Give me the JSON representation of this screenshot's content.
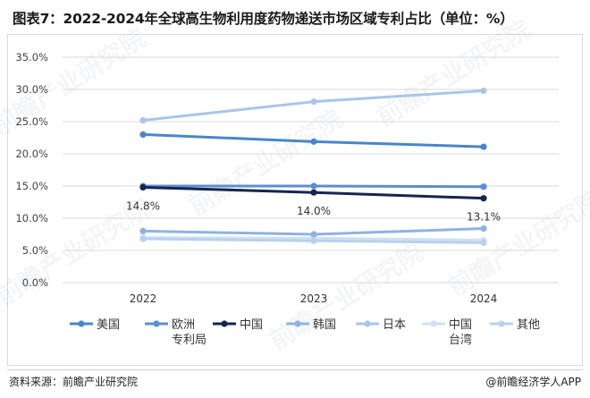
{
  "title": "图表7：2022-2024年全球高生物利用度药物递送市场区域专利占比（单位：%）",
  "source": "资料来源：前瞻产业研究院",
  "brand": "@前瞻经济学人APP",
  "watermark": "前瞻产业研究院",
  "chart_data": {
    "type": "line",
    "x": [
      "2022",
      "2023",
      "2024"
    ],
    "ylim": [
      0,
      35
    ],
    "yticks": [
      "0.0%",
      "5.0%",
      "10.0%",
      "15.0%",
      "20.0%",
      "25.0%",
      "30.0%",
      "35.0%"
    ],
    "grid": true,
    "legend_position": "bottom",
    "series": [
      {
        "name": "美国",
        "values": [
          23.0,
          21.9,
          21.1
        ],
        "color": "#4a86c8"
      },
      {
        "name": "欧洲\n专利局",
        "values": [
          15.0,
          15.0,
          14.9
        ],
        "color": "#5b8fd0"
      },
      {
        "name": "中国",
        "values": [
          14.8,
          14.0,
          13.1
        ],
        "color": "#16254f",
        "labels": [
          "14.8%",
          "14.0%",
          "13.1%"
        ]
      },
      {
        "name": "韩国",
        "values": [
          8.0,
          7.5,
          8.4
        ],
        "color": "#8fb3e0"
      },
      {
        "name": "日本",
        "values": [
          25.2,
          28.1,
          29.8
        ],
        "color": "#a9c5e8"
      },
      {
        "name": "中国\n台湾",
        "values": [
          7.0,
          6.9,
          6.6
        ],
        "color": "#cfe0f3"
      },
      {
        "name": "其他",
        "values": [
          6.8,
          6.5,
          6.2
        ],
        "color": "#b9d0ee"
      }
    ]
  }
}
